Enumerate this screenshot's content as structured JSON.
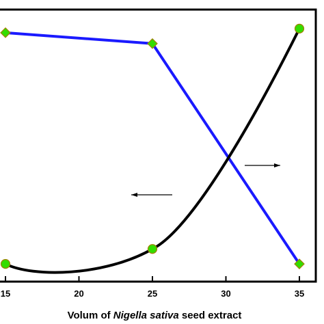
{
  "chart_data": {
    "type": "line",
    "xlabel": {
      "prefix": "Volum of ",
      "italic": "Nigella sativa",
      "suffix": " seed  extract"
    },
    "xlim": [
      15,
      35
    ],
    "xticks": [
      "15",
      "20",
      "25",
      "30",
      "35"
    ],
    "series": [
      {
        "color": "#1a1aff",
        "marker": "diamond",
        "marker_color": "#33dd00",
        "points": [
          {
            "x": 15,
            "y": 0.915
          },
          {
            "x": 25,
            "y": 0.875
          },
          {
            "x": 35,
            "y": 0.065
          }
        ]
      },
      {
        "color": "#000000",
        "marker": "circle",
        "marker_color": "#33dd00",
        "points": [
          {
            "x": 15,
            "y": 0.065
          },
          {
            "x": 25,
            "y": 0.12
          },
          {
            "x": 35,
            "y": 0.93
          }
        ]
      }
    ],
    "annotations": [
      {
        "type": "arrow",
        "direction": "left",
        "points_to": "left axis"
      },
      {
        "type": "arrow",
        "direction": "right",
        "points_to": "right axis"
      }
    ]
  }
}
